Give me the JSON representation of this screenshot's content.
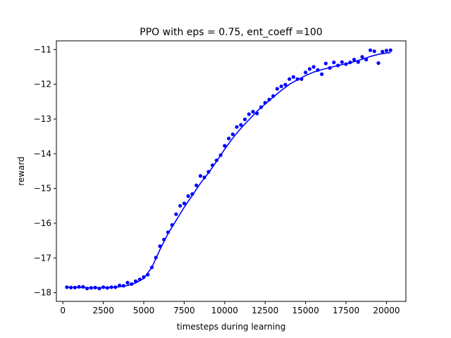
{
  "chart_data": {
    "type": "scatter",
    "title": "PPO with eps = 0.75, ent_coeff =100",
    "xlabel": "timesteps during learning",
    "ylabel": "reward",
    "xlim": [
      -400,
      21200
    ],
    "ylim": [
      -18.25,
      -10.75
    ],
    "xticks": [
      {
        "value": 0,
        "label": "0"
      },
      {
        "value": 2500,
        "label": "2500"
      },
      {
        "value": 5000,
        "label": "5000"
      },
      {
        "value": 7500,
        "label": "7500"
      },
      {
        "value": 10000,
        "label": "10000"
      },
      {
        "value": 12500,
        "label": "12500"
      },
      {
        "value": 15000,
        "label": "15000"
      },
      {
        "value": 17500,
        "label": "17500"
      },
      {
        "value": 20000,
        "label": "20000"
      }
    ],
    "yticks": [
      {
        "value": -18,
        "label": "−18"
      },
      {
        "value": -17,
        "label": "−17"
      },
      {
        "value": -16,
        "label": "−16"
      },
      {
        "value": -15,
        "label": "−15"
      },
      {
        "value": -14,
        "label": "−14"
      },
      {
        "value": -13,
        "label": "−13"
      },
      {
        "value": -12,
        "label": "−12"
      },
      {
        "value": -11,
        "label": "−11"
      }
    ],
    "grid": false,
    "color": "#0000ff",
    "series": [
      {
        "kind": "points",
        "x": [
          250,
          500,
          750,
          1000,
          1250,
          1500,
          1750,
          2000,
          2250,
          2500,
          2750,
          3000,
          3250,
          3500,
          3750,
          4000,
          4250,
          4500,
          4750,
          5000,
          5250,
          5500,
          5750,
          6000,
          6250,
          6500,
          6750,
          7000,
          7250,
          7500,
          7750,
          8000,
          8250,
          8500,
          8750,
          9000,
          9250,
          9500,
          9750,
          10000,
          10250,
          10500,
          10750,
          11000,
          11250,
          11500,
          11750,
          12000,
          12250,
          12500,
          12750,
          13000,
          13250,
          13500,
          13750,
          14000,
          14250,
          14500,
          14750,
          15000,
          15250,
          15500,
          15750,
          16000,
          16250,
          16500,
          16750,
          17000,
          17250,
          17500,
          17750,
          18000,
          18250,
          18500,
          18750,
          19000,
          19250,
          19500,
          19750,
          20000,
          20250
        ],
        "y": [
          -17.84,
          -17.85,
          -17.85,
          -17.83,
          -17.83,
          -17.88,
          -17.86,
          -17.85,
          -17.88,
          -17.84,
          -17.86,
          -17.84,
          -17.84,
          -17.79,
          -17.8,
          -17.71,
          -17.75,
          -17.67,
          -17.62,
          -17.55,
          -17.48,
          -17.27,
          -16.99,
          -16.66,
          -16.47,
          -16.26,
          -16.05,
          -15.74,
          -15.5,
          -15.43,
          -15.22,
          -15.16,
          -14.91,
          -14.64,
          -14.68,
          -14.52,
          -14.33,
          -14.19,
          -14.04,
          -13.77,
          -13.56,
          -13.44,
          -13.23,
          -13.17,
          -13.01,
          -12.86,
          -12.79,
          -12.84,
          -12.66,
          -12.53,
          -12.44,
          -12.34,
          -12.13,
          -12.06,
          -12.01,
          -11.85,
          -11.79,
          -11.85,
          -11.85,
          -11.66,
          -11.56,
          -11.5,
          -11.59,
          -11.71,
          -11.4,
          -11.53,
          -11.37,
          -11.46,
          -11.36,
          -11.42,
          -11.37,
          -11.29,
          -11.36,
          -11.21,
          -11.29,
          -11.02,
          -11.05,
          -11.39,
          -11.06,
          -11.03,
          -11.02
        ]
      },
      {
        "kind": "line",
        "x": [
          250,
          1000,
          2000,
          3000,
          3500,
          4000,
          4500,
          5000,
          5500,
          6000,
          6500,
          7000,
          7500,
          8000,
          8500,
          9000,
          9500,
          10000,
          10500,
          11000,
          11500,
          12000,
          12500,
          13000,
          13500,
          14000,
          14500,
          15000,
          15500,
          16000,
          16500,
          17000,
          17500,
          18000,
          18500,
          19000,
          19500,
          20000,
          20250
        ],
        "y": [
          -17.85,
          -17.85,
          -17.86,
          -17.85,
          -17.83,
          -17.79,
          -17.72,
          -17.59,
          -17.27,
          -16.76,
          -16.3,
          -15.92,
          -15.54,
          -15.2,
          -14.85,
          -14.55,
          -14.22,
          -13.87,
          -13.55,
          -13.27,
          -13.02,
          -12.78,
          -12.57,
          -12.37,
          -12.18,
          -12.0,
          -11.87,
          -11.75,
          -11.65,
          -11.58,
          -11.52,
          -11.46,
          -11.41,
          -11.35,
          -11.28,
          -11.2,
          -11.14,
          -11.1,
          -11.09
        ]
      }
    ]
  }
}
